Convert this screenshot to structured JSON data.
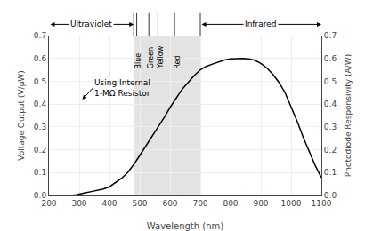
{
  "chart_data": {
    "type": "line",
    "xlabel": "Wavelength (nm)",
    "ylabel": "Voltage Output (V/μW)",
    "y2label": "Photodiode Responsivity (A/W)",
    "x": [
      200,
      250,
      270,
      290,
      300,
      320,
      340,
      360,
      380,
      400,
      420,
      440,
      460,
      480,
      500,
      520,
      540,
      560,
      580,
      600,
      620,
      640,
      660,
      680,
      700,
      720,
      740,
      760,
      780,
      800,
      820,
      840,
      860,
      880,
      900,
      920,
      940,
      960,
      980,
      1000,
      1020,
      1040,
      1060,
      1080,
      1100
    ],
    "values": [
      0.0,
      0.0,
      0.0,
      0.003,
      0.007,
      0.012,
      0.017,
      0.022,
      0.028,
      0.038,
      0.055,
      0.075,
      0.1,
      0.135,
      0.175,
      0.215,
      0.255,
      0.295,
      0.34,
      0.385,
      0.425,
      0.465,
      0.495,
      0.525,
      0.55,
      0.565,
      0.575,
      0.585,
      0.593,
      0.598,
      0.6,
      0.6,
      0.598,
      0.592,
      0.578,
      0.558,
      0.53,
      0.495,
      0.45,
      0.39,
      0.325,
      0.255,
      0.19,
      0.13,
      0.078
    ],
    "color": "#000000",
    "xlim": [
      200,
      1100
    ],
    "ylim": [
      0,
      0.7
    ],
    "xticks": [
      200,
      300,
      400,
      500,
      600,
      700,
      800,
      900,
      1000,
      1100
    ],
    "yticks": [
      {
        "value": 0,
        "label": "0.0"
      },
      0.1,
      0.2,
      0.3,
      0.4,
      0.5,
      0.6,
      0.7
    ],
    "y2lim": [
      0,
      0.7
    ],
    "y2ticks": [
      {
        "value": 0,
        "label": "0.0"
      },
      0.1,
      0.2,
      0.3,
      0.4,
      0.5,
      0.6,
      0.7
    ],
    "grid": true,
    "visible_band": {
      "from": 480,
      "to": 700,
      "color": "#c8c8c8"
    },
    "regions": [
      {
        "label": "Ultraviolet",
        "from": 200,
        "to": 480
      },
      {
        "label": "Infrared",
        "from": 700,
        "to": 1100
      }
    ],
    "bands": [
      {
        "label": "Blue",
        "x": 497
      },
      {
        "label": "Green",
        "x": 537
      },
      {
        "label": "Yellow",
        "x": 570
      },
      {
        "label": "Red",
        "x": 625
      }
    ],
    "band_dividers": [
      480,
      490,
      530,
      560,
      615,
      700
    ],
    "annotations": [
      {
        "text": "Using Internal\n1-MΩ Resistor",
        "x": 310,
        "y": 0.42,
        "text_x": 345,
        "text_y": 0.47
      }
    ]
  }
}
